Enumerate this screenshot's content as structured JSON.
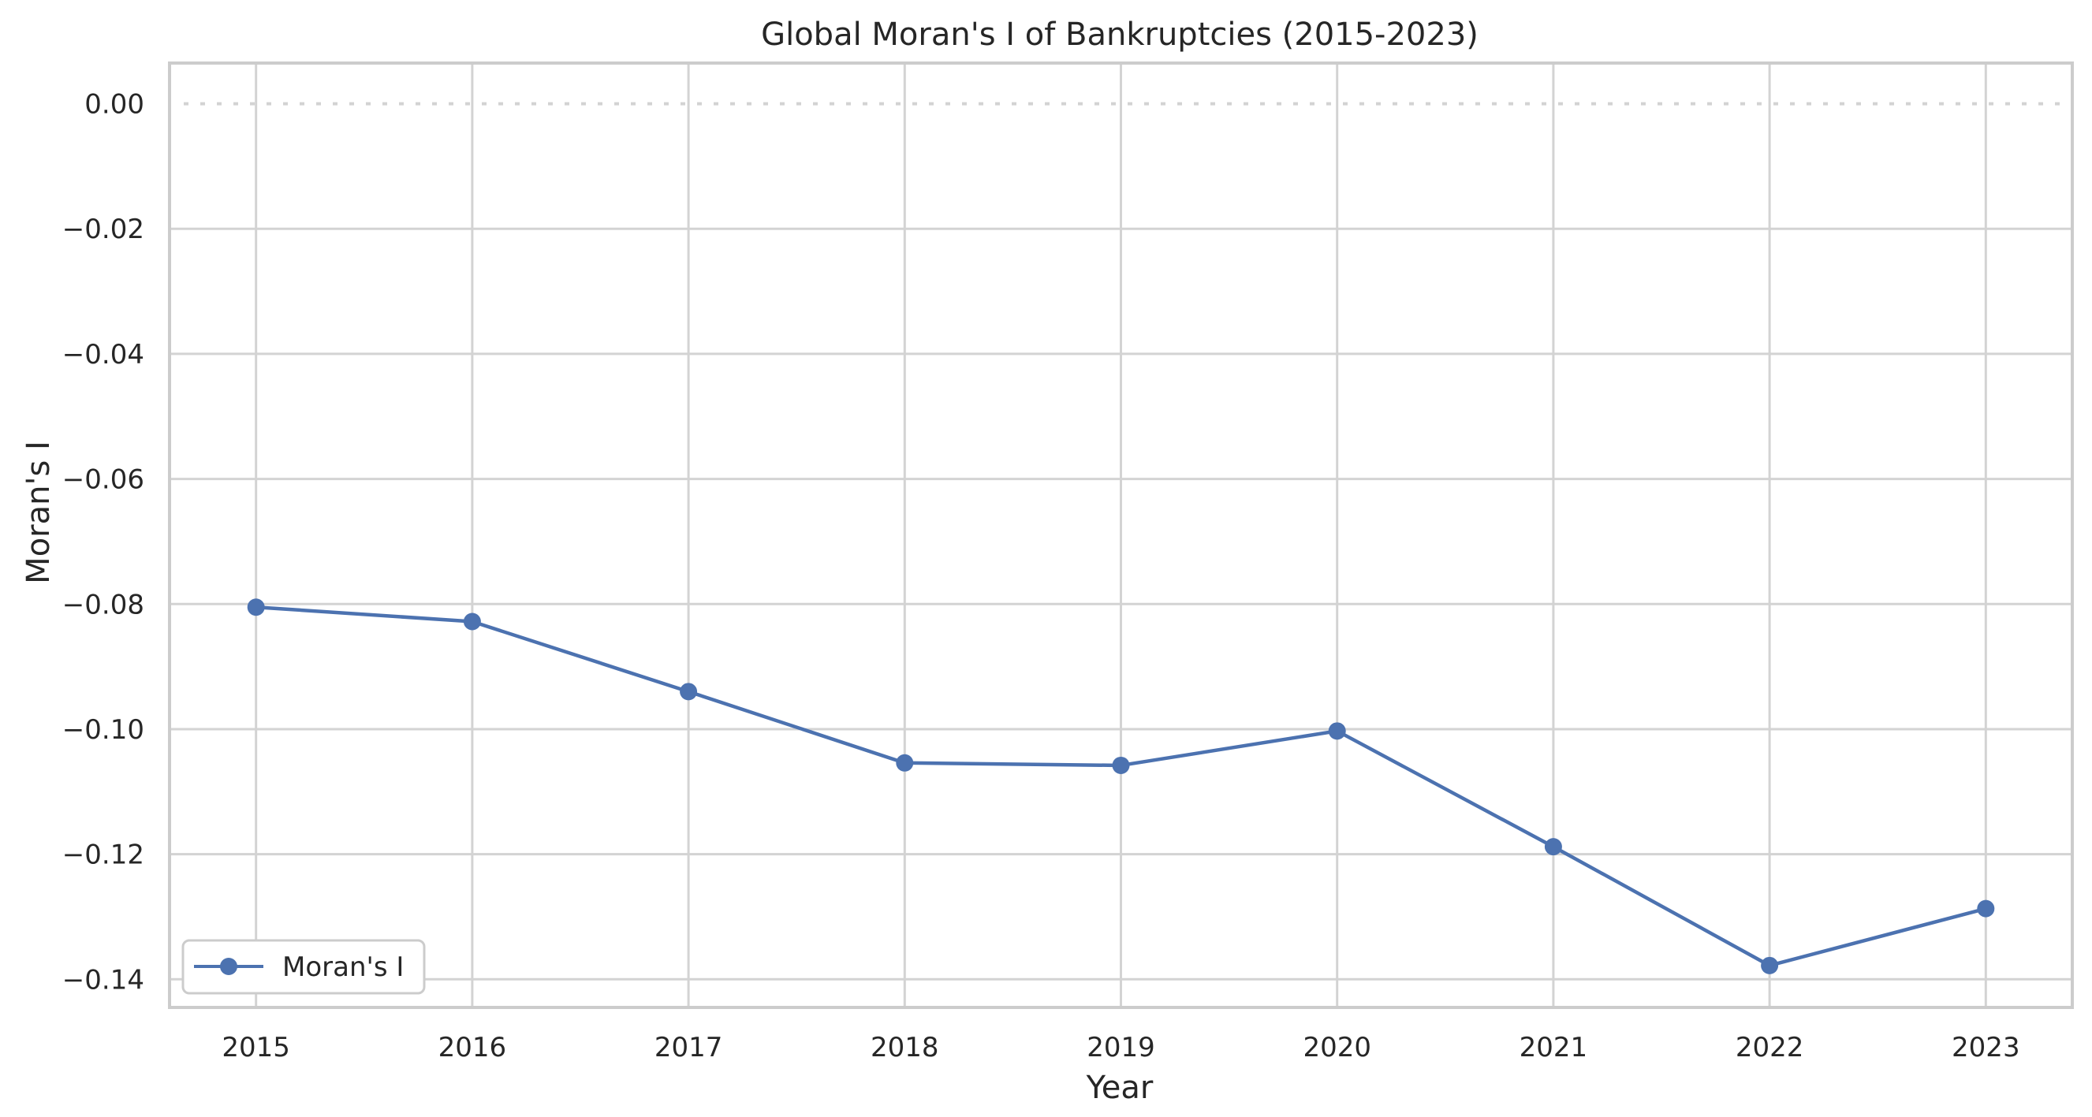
{
  "chart_data": {
    "type": "line",
    "title": "Global Moran's I of Bankruptcies (2015-2023)",
    "xlabel": "Year",
    "ylabel": "Moran's I",
    "x": [
      2015,
      2016,
      2017,
      2018,
      2019,
      2020,
      2021,
      2022,
      2023
    ],
    "xticks": [
      "2015",
      "2016",
      "2017",
      "2018",
      "2019",
      "2020",
      "2021",
      "2022",
      "2023"
    ],
    "yticks": [
      "0.00",
      "−0.02",
      "−0.04",
      "−0.06",
      "−0.08",
      "−0.10",
      "−0.12",
      "−0.14"
    ],
    "ytick_values": [
      0.0,
      -0.02,
      -0.04,
      -0.06,
      -0.08,
      -0.1,
      -0.12,
      -0.14
    ],
    "xlim": [
      2014.6,
      2023.4
    ],
    "ylim": [
      -0.1445,
      0.0065
    ],
    "series": [
      {
        "name": "Moran's I",
        "color": "#4c72b0",
        "marker": "circle",
        "values": [
          -0.0805,
          -0.0828,
          -0.094,
          -0.1054,
          -0.1058,
          -0.1003,
          -0.1188,
          -0.1378,
          -0.1287
        ]
      }
    ],
    "reference_line": {
      "y": 0.0,
      "style": "dotted",
      "color": "#d3d3d3"
    },
    "grid": true,
    "legend_position": "lower-left"
  }
}
